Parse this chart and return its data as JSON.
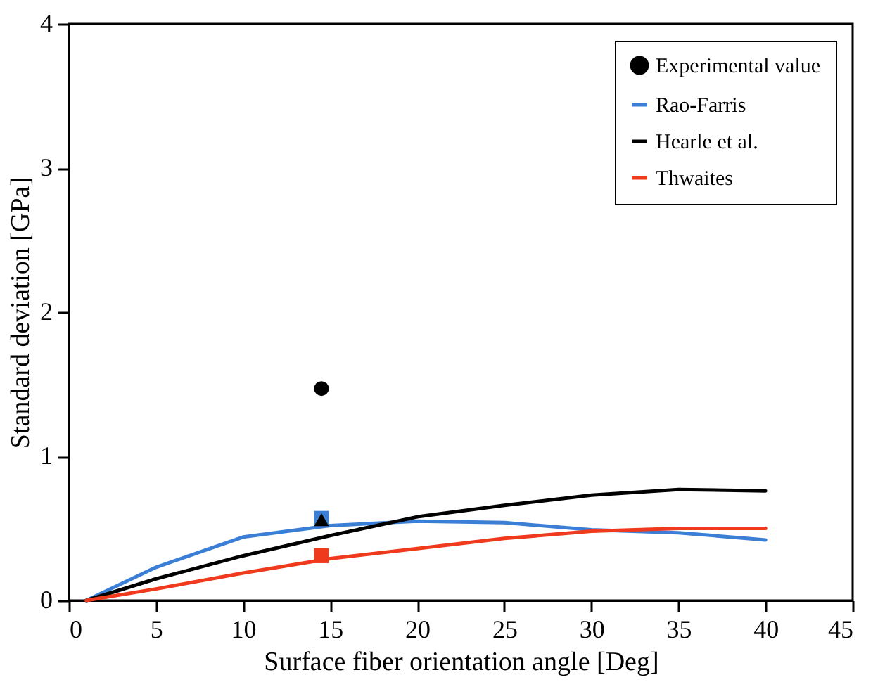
{
  "chart_data": {
    "type": "line",
    "xlabel": "Surface fiber orientation angle [Deg]",
    "ylabel": "Standard deviation [GPa]",
    "xlim": [
      0,
      45
    ],
    "xticks": [
      0,
      5,
      10,
      15,
      20,
      25,
      30,
      35,
      40,
      45
    ],
    "ylim": [
      0,
      4
    ],
    "yticks": [
      0,
      1,
      2,
      3,
      4
    ],
    "grid": false,
    "legend": "top right",
    "series": [
      {
        "name": "Experimental value",
        "type": "scatter",
        "marker": "circle",
        "color": "#000000",
        "x": [
          14.5
        ],
        "values": [
          1.47
        ]
      },
      {
        "name": "Rao-Farris",
        "color": "#3a7fd5",
        "x": [
          1,
          5,
          10,
          15,
          20,
          25,
          30,
          35,
          40
        ],
        "values": [
          0,
          0.23,
          0.44,
          0.52,
          0.55,
          0.54,
          0.49,
          0.47,
          0.42
        ]
      },
      {
        "name": "Hearle et al.",
        "color": "#000000",
        "x": [
          1,
          5,
          10,
          15,
          20,
          25,
          30,
          35,
          40
        ],
        "values": [
          0,
          0.15,
          0.31,
          0.45,
          0.58,
          0.66,
          0.73,
          0.77,
          0.76
        ]
      },
      {
        "name": "Thwaites",
        "color": "#f03a1e",
        "x": [
          1,
          5,
          10,
          15,
          20,
          25,
          30,
          35,
          40
        ],
        "values": [
          0,
          0.08,
          0.19,
          0.29,
          0.36,
          0.43,
          0.48,
          0.5,
          0.5
        ]
      },
      {
        "type": "scatter",
        "marker": "square",
        "color": "#3a7fd5",
        "x": [
          14.5
        ],
        "values": [
          0.57
        ]
      },
      {
        "type": "scatter",
        "marker": "triangle",
        "color": "#000000",
        "x": [
          14.5
        ],
        "values": [
          0.56
        ]
      },
      {
        "type": "scatter",
        "marker": "square",
        "color": "#f03a1e",
        "x": [
          14.5
        ],
        "values": [
          0.31
        ]
      }
    ]
  }
}
